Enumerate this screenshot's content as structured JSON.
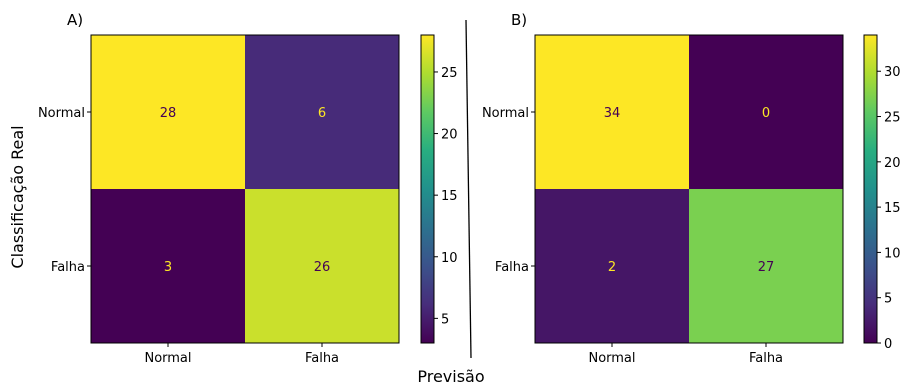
{
  "chart_data": [
    {
      "type": "heatmap",
      "panel_label": "A)",
      "row_labels": [
        "Normal",
        "Falha"
      ],
      "col_labels": [
        "Normal",
        "Falha"
      ],
      "values": [
        [
          28,
          6
        ],
        [
          3,
          26
        ]
      ],
      "colorbar": {
        "range": [
          3,
          28
        ],
        "ticks": [
          5,
          10,
          15,
          20,
          25
        ]
      },
      "colormap": "viridis"
    },
    {
      "type": "heatmap",
      "panel_label": "B)",
      "row_labels": [
        "Normal",
        "Falha"
      ],
      "col_labels": [
        "Normal",
        "Falha"
      ],
      "values": [
        [
          34,
          0
        ],
        [
          2,
          27
        ]
      ],
      "colorbar": {
        "range": [
          0,
          34
        ],
        "ticks": [
          0,
          5,
          10,
          15,
          20,
          25,
          30
        ]
      },
      "colormap": "viridis"
    }
  ],
  "ylabel": "Classificação Real",
  "xlabel": "Previsão"
}
